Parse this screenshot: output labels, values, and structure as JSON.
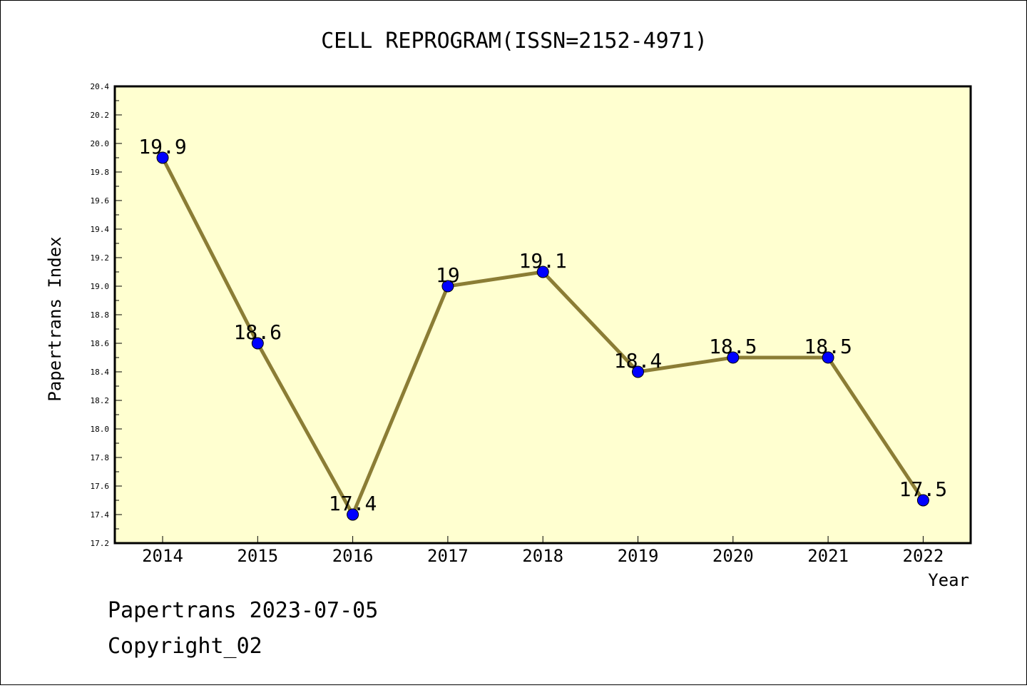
{
  "chart_data": {
    "type": "line",
    "title": "CELL REPROGRAM(ISSN=2152-4971)",
    "xlabel": "Year",
    "ylabel": "Papertrans Index",
    "ylim": [
      17.2,
      20.4
    ],
    "yticks": [
      "17.2",
      "17.4",
      "17.6",
      "17.8",
      "18.0",
      "18.2",
      "18.4",
      "18.6",
      "18.8",
      "19.0",
      "19.2",
      "19.4",
      "19.6",
      "19.8",
      "20.0",
      "20.2",
      "20.4"
    ],
    "categories": [
      "2014",
      "2015",
      "2016",
      "2017",
      "2018",
      "2019",
      "2020",
      "2021",
      "2022"
    ],
    "series": [
      {
        "values": [
          19.9,
          18.6,
          17.4,
          19.0,
          19.1,
          18.4,
          18.5,
          18.5,
          17.5
        ],
        "labels": [
          "19.9",
          "18.6",
          "17.4",
          "19",
          "19.1",
          "18.4",
          "18.5",
          "18.5",
          "17.5"
        ]
      }
    ],
    "grid": false,
    "colors": {
      "plot_background": "#ffffd0",
      "line": "#8b7d35",
      "marker": "#0000ff"
    }
  },
  "footer": {
    "line1": "Papertrans 2023-07-05",
    "line2": "Copyright_02"
  }
}
